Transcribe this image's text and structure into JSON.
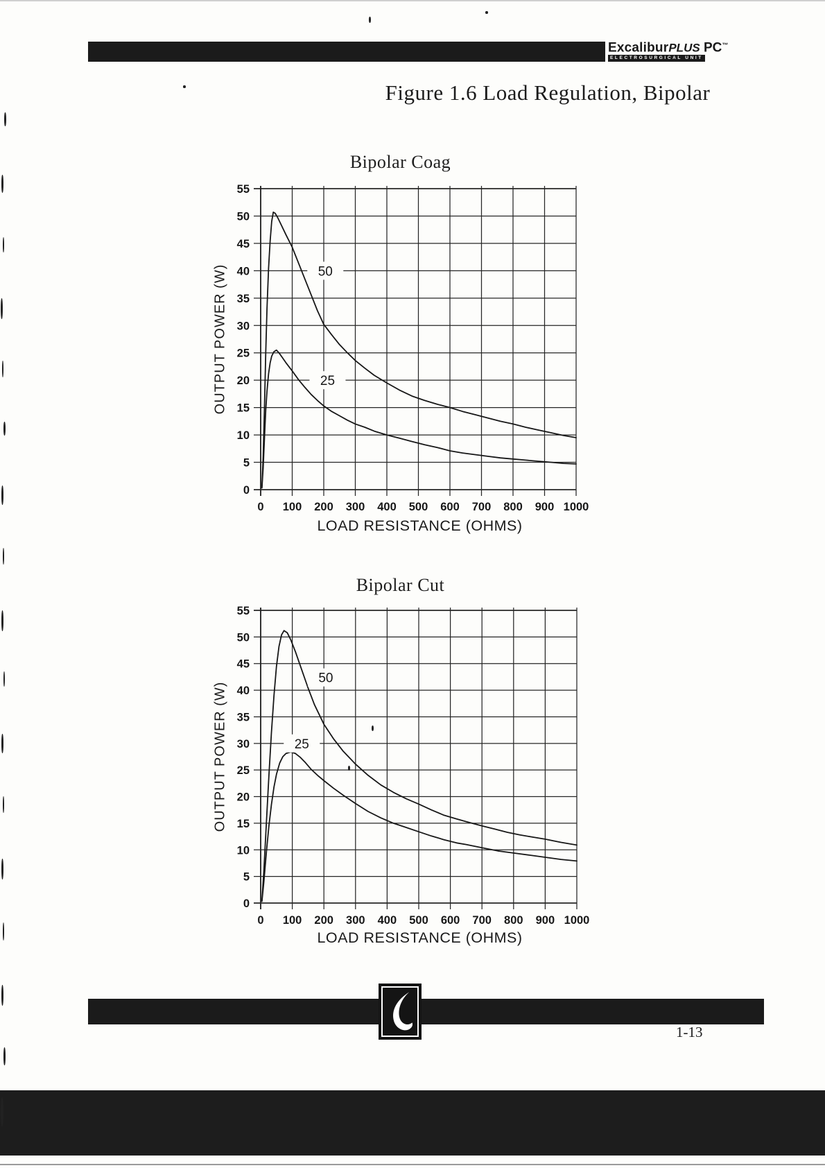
{
  "page": {
    "header": {
      "brand": {
        "main": "Excalibur",
        "plus": "PLUS",
        "suffix": " PC",
        "tm": "™",
        "subtitle": "ELECTROSURGICAL UNIT"
      }
    },
    "figure_title": "Figure 1.6 Load Regulation, Bipolar",
    "page_number": "1-13"
  },
  "chart_data": [
    {
      "type": "line",
      "title": "Bipolar Coag",
      "xlabel": "LOAD RESISTANCE (OHMS)",
      "ylabel": "OUTPUT POWER (W)",
      "xlim": [
        0,
        1000
      ],
      "ylim": [
        0,
        55
      ],
      "x_ticks": [
        0,
        100,
        200,
        300,
        400,
        500,
        600,
        700,
        800,
        900,
        1000
      ],
      "y_ticks": [
        0,
        5,
        10,
        15,
        20,
        25,
        30,
        35,
        40,
        45,
        50,
        55
      ],
      "grid": true,
      "legend_position": "inline-curve-labels",
      "series": [
        {
          "name": "50",
          "label": "50",
          "label_at": [
            205,
            40
          ],
          "points": [
            [
              4,
              0.5
            ],
            [
              8,
              6
            ],
            [
              12,
              15
            ],
            [
              16,
              25
            ],
            [
              20,
              33
            ],
            [
              25,
              40.5
            ],
            [
              30,
              45.5
            ],
            [
              35,
              49
            ],
            [
              40,
              50.7
            ],
            [
              46,
              50.5
            ],
            [
              55,
              49.6
            ],
            [
              65,
              48.4
            ],
            [
              80,
              46.6
            ],
            [
              100,
              44.3
            ],
            [
              120,
              41.4
            ],
            [
              140,
              38.5
            ],
            [
              160,
              35.6
            ],
            [
              180,
              32.7
            ],
            [
              200,
              30.2
            ],
            [
              225,
              28.3
            ],
            [
              250,
              26.5
            ],
            [
              275,
              25
            ],
            [
              300,
              23.6
            ],
            [
              330,
              22.2
            ],
            [
              360,
              20.9
            ],
            [
              400,
              19.5
            ],
            [
              440,
              18.2
            ],
            [
              480,
              17.1
            ],
            [
              520,
              16.3
            ],
            [
              560,
              15.6
            ],
            [
              600,
              15
            ],
            [
              640,
              14.3
            ],
            [
              680,
              13.7
            ],
            [
              720,
              13.1
            ],
            [
              760,
              12.5
            ],
            [
              800,
              12
            ],
            [
              840,
              11.4
            ],
            [
              880,
              10.9
            ],
            [
              920,
              10.4
            ],
            [
              960,
              9.9
            ],
            [
              1000,
              9.5
            ]
          ]
        },
        {
          "name": "25",
          "label": "25",
          "label_at": [
            212,
            20
          ],
          "points": [
            [
              4,
              0.3
            ],
            [
              8,
              4
            ],
            [
              12,
              9.5
            ],
            [
              16,
              14.5
            ],
            [
              20,
              18
            ],
            [
              25,
              21.2
            ],
            [
              30,
              23.2
            ],
            [
              35,
              24.4
            ],
            [
              42,
              25.2
            ],
            [
              50,
              25.5
            ],
            [
              58,
              25
            ],
            [
              68,
              24.2
            ],
            [
              80,
              23.2
            ],
            [
              100,
              21.7
            ],
            [
              120,
              20.1
            ],
            [
              140,
              18.7
            ],
            [
              160,
              17.4
            ],
            [
              180,
              16.3
            ],
            [
              200,
              15.3
            ],
            [
              225,
              14.3
            ],
            [
              250,
              13.5
            ],
            [
              275,
              12.7
            ],
            [
              300,
              12
            ],
            [
              330,
              11.4
            ],
            [
              360,
              10.7
            ],
            [
              400,
              10
            ],
            [
              440,
              9.4
            ],
            [
              480,
              8.8
            ],
            [
              520,
              8.2
            ],
            [
              560,
              7.7
            ],
            [
              600,
              7.1
            ],
            [
              640,
              6.7
            ],
            [
              680,
              6.4
            ],
            [
              720,
              6.1
            ],
            [
              760,
              5.8
            ],
            [
              800,
              5.6
            ],
            [
              840,
              5.4
            ],
            [
              880,
              5.2
            ],
            [
              920,
              5
            ],
            [
              960,
              4.8
            ],
            [
              1000,
              4.7
            ]
          ]
        }
      ]
    },
    {
      "type": "line",
      "title": "Bipolar Cut",
      "xlabel": "LOAD RESISTANCE (OHMS)",
      "ylabel": "OUTPUT POWER (W)",
      "xlim": [
        0,
        1000
      ],
      "ylim": [
        0,
        55
      ],
      "x_ticks": [
        0,
        100,
        200,
        300,
        400,
        500,
        600,
        700,
        800,
        900,
        1000
      ],
      "y_ticks": [
        0,
        5,
        10,
        15,
        20,
        25,
        30,
        35,
        40,
        45,
        50,
        55
      ],
      "grid": true,
      "legend_position": "inline-curve-labels",
      "series": [
        {
          "name": "50",
          "label": "50",
          "label_at": [
            206,
            42.4
          ],
          "points": [
            [
              4,
              0.5
            ],
            [
              10,
              6
            ],
            [
              18,
              15
            ],
            [
              26,
              24
            ],
            [
              34,
              32
            ],
            [
              42,
              39
            ],
            [
              50,
              44.5
            ],
            [
              58,
              48.2
            ],
            [
              66,
              50.4
            ],
            [
              74,
              51.2
            ],
            [
              84,
              50.8
            ],
            [
              95,
              49.5
            ],
            [
              110,
              47.2
            ],
            [
              130,
              43.8
            ],
            [
              150,
              40.4
            ],
            [
              170,
              37.3
            ],
            [
              200,
              33.6
            ],
            [
              230,
              30.9
            ],
            [
              260,
              28.6
            ],
            [
              300,
              26.1
            ],
            [
              340,
              24
            ],
            [
              380,
              22.2
            ],
            [
              420,
              20.8
            ],
            [
              460,
              19.6
            ],
            [
              500,
              18.6
            ],
            [
              540,
              17.5
            ],
            [
              580,
              16.5
            ],
            [
              620,
              15.8
            ],
            [
              650,
              15.3
            ],
            [
              700,
              14.5
            ],
            [
              740,
              13.9
            ],
            [
              780,
              13.3
            ],
            [
              820,
              12.8
            ],
            [
              860,
              12.4
            ],
            [
              900,
              12
            ],
            [
              950,
              11.4
            ],
            [
              1000,
              10.9
            ]
          ]
        },
        {
          "name": "25",
          "label": "25",
          "label_at": [
            130,
            30
          ],
          "points": [
            [
              4,
              0.3
            ],
            [
              10,
              4
            ],
            [
              18,
              9.5
            ],
            [
              26,
              14.5
            ],
            [
              34,
              18.5
            ],
            [
              42,
              21.8
            ],
            [
              50,
              24.2
            ],
            [
              60,
              26.3
            ],
            [
              70,
              27.5
            ],
            [
              80,
              28.1
            ],
            [
              95,
              28.4
            ],
            [
              110,
              28.1
            ],
            [
              125,
              27.4
            ],
            [
              140,
              26.5
            ],
            [
              160,
              25.1
            ],
            [
              180,
              24
            ],
            [
              200,
              23
            ],
            [
              230,
              21.6
            ],
            [
              260,
              20.3
            ],
            [
              300,
              18.7
            ],
            [
              340,
              17.2
            ],
            [
              380,
              16
            ],
            [
              420,
              15
            ],
            [
              460,
              14.2
            ],
            [
              500,
              13.4
            ],
            [
              540,
              12.6
            ],
            [
              580,
              11.9
            ],
            [
              620,
              11.3
            ],
            [
              650,
              11
            ],
            [
              700,
              10.4
            ],
            [
              750,
              9.8
            ],
            [
              800,
              9.4
            ],
            [
              850,
              9
            ],
            [
              900,
              8.6
            ],
            [
              950,
              8.2
            ],
            [
              1000,
              7.9
            ]
          ]
        }
      ]
    }
  ]
}
